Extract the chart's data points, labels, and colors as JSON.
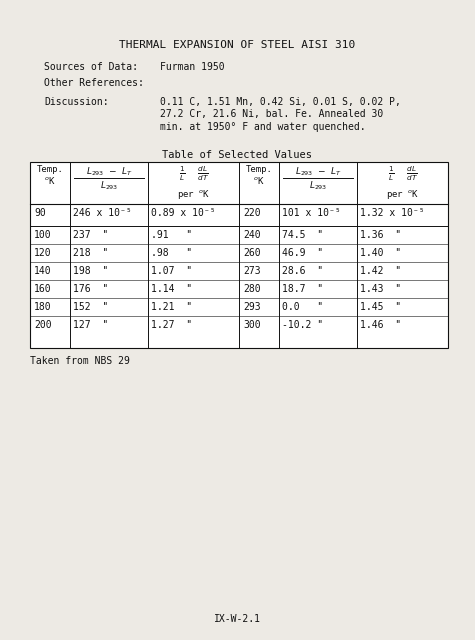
{
  "title": "THERMAL EXPANSION OF STEEL AISI 310",
  "sources_label": "Sources of Data:",
  "sources_value": "Furman 1950",
  "other_ref_label": "Other References:",
  "discussion_label": "Discussion:",
  "discussion_lines": [
    "0.11 C, 1.51 Mn, 0.42 Si, 0.01 S, 0.02 P,",
    "27.2 Cr, 21.6 Ni, bal. Fe. Annealed 30",
    "min. at 1950° F and water quenched."
  ],
  "table_title": "Table of Selected Values",
  "left_data": [
    [
      "90",
      "246 x 10⁻⁵",
      "0.89 x 10⁻⁵"
    ],
    [
      "100",
      "237  \"",
      ".91   \""
    ],
    [
      "120",
      "218  \"",
      ".98   \""
    ],
    [
      "140",
      "198  \"",
      "1.07  \""
    ],
    [
      "160",
      "176  \"",
      "1.14  \""
    ],
    [
      "180",
      "152  \"",
      "1.21  \""
    ],
    [
      "200",
      "127  \"",
      "1.27  \""
    ]
  ],
  "right_data": [
    [
      "220",
      "101 x 10⁻⁵",
      "1.32 x 10⁻⁵"
    ],
    [
      "240",
      "74.5  \"",
      "1.36  \""
    ],
    [
      "260",
      "46.9  \"",
      "1.40  \""
    ],
    [
      "273",
      "28.6  \"",
      "1.42  \""
    ],
    [
      "280",
      "18.7  \"",
      "1.43  \""
    ],
    [
      "293",
      "0.0   \"",
      "1.45  \""
    ],
    [
      "300",
      "-10.2 \"",
      "1.46  \""
    ]
  ],
  "footnote": "Taken from NBS 29",
  "page_label": "IX-W-2.1",
  "bg_color": "#edeae4",
  "text_color": "#111111",
  "font_size": 7.0,
  "title_font_size": 8.0
}
